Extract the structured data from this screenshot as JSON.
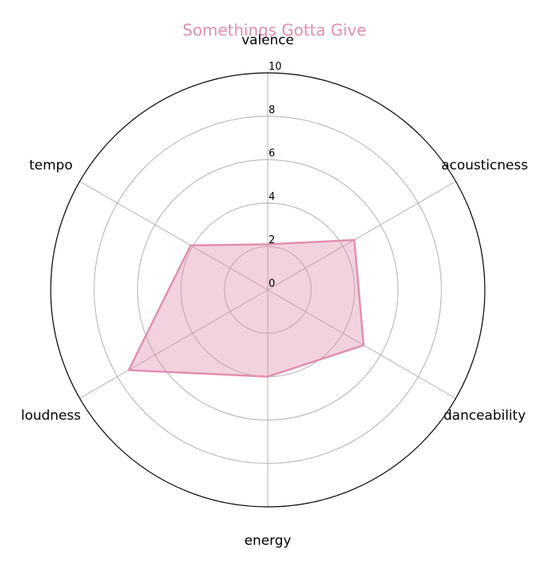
{
  "chart_data": {
    "type": "radar",
    "title": "Somethings Gotta Give",
    "axes": [
      "valence",
      "acousticness",
      "danceability",
      "energy",
      "loudness",
      "tempo"
    ],
    "rlim": [
      0,
      10
    ],
    "rticks": [
      "0",
      "2",
      "4",
      "6",
      "8",
      "10"
    ],
    "grid": true,
    "series": [
      {
        "values": [
          2.1,
          4.6,
          5.1,
          4.0,
          7.4,
          4.1
        ]
      }
    ],
    "colors": {
      "series": "#e08fb0",
      "grid": "#b0b0b0",
      "frame": "#000000"
    }
  }
}
